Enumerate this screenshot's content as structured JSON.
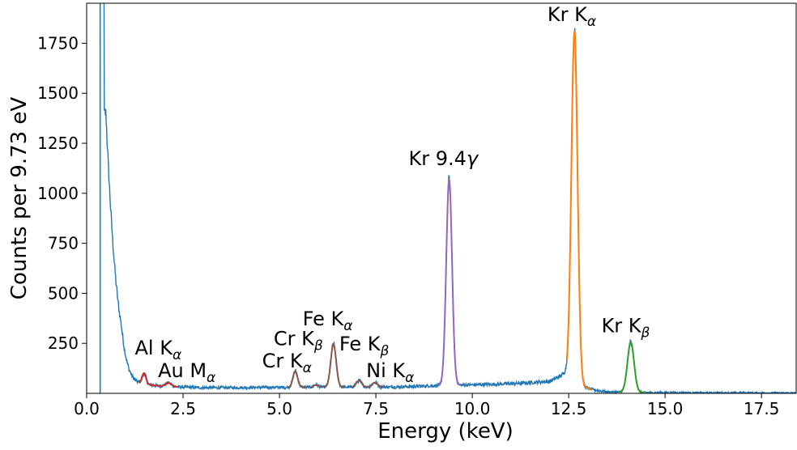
{
  "chart_data": {
    "type": "line",
    "title": "",
    "xlabel": "Energy (keV)",
    "ylabel": "Counts per 9.73 eV",
    "xlim": [
      0,
      18.4
    ],
    "ylim": [
      0,
      1950
    ],
    "xticks": [
      0,
      2.5,
      5,
      7.5,
      10,
      12.5,
      15,
      17.5
    ],
    "xtick_labels": [
      "0.0",
      "2.5",
      "5.0",
      "7.5",
      "10.0",
      "12.5",
      "15.0",
      "17.5"
    ],
    "yticks": [
      250,
      500,
      750,
      1000,
      1250,
      1500,
      1750
    ],
    "ytick_labels": [
      "250",
      "500",
      "750",
      "1000",
      "1250",
      "1500",
      "1750"
    ],
    "grid": false,
    "legend": "none",
    "vertical_line": {
      "x": 0.35,
      "color": "#1f77b4"
    },
    "background": {
      "color": "#1f77b4",
      "low_energy_spike": {
        "x": 0.4,
        "height": 2100
      },
      "continuum": [
        {
          "x": 0.5,
          "y": 1400
        },
        {
          "x": 0.6,
          "y": 1000
        },
        {
          "x": 0.7,
          "y": 700
        },
        {
          "x": 0.8,
          "y": 480
        },
        {
          "x": 0.9,
          "y": 340
        },
        {
          "x": 1.0,
          "y": 200
        },
        {
          "x": 1.1,
          "y": 120
        },
        {
          "x": 1.2,
          "y": 80
        },
        {
          "x": 1.3,
          "y": 60
        },
        {
          "x": 1.5,
          "y": 45
        },
        {
          "x": 2.0,
          "y": 35
        },
        {
          "x": 3.0,
          "y": 28
        },
        {
          "x": 5.0,
          "y": 30
        },
        {
          "x": 8.0,
          "y": 32
        },
        {
          "x": 9.0,
          "y": 38
        },
        {
          "x": 11.0,
          "y": 48
        },
        {
          "x": 12.0,
          "y": 60
        },
        {
          "x": 12.4,
          "y": 100
        },
        {
          "x": 13.5,
          "y": 8
        },
        {
          "x": 15.0,
          "y": 3
        },
        {
          "x": 18.4,
          "y": 2
        }
      ]
    },
    "series": [
      {
        "line": "Al",
        "color": "#d62728",
        "center": 1.49,
        "amplitude": 55,
        "sigma": 0.05,
        "range": [
          1.35,
          1.75
        ]
      },
      {
        "line": "Au",
        "color": "#d62728",
        "center": 2.12,
        "amplitude": 18,
        "sigma": 0.08,
        "range": [
          1.75,
          2.35
        ]
      },
      {
        "line": "Cr Ka",
        "color": "#8c564b",
        "center": 5.41,
        "amplitude": 80,
        "sigma": 0.06,
        "range": [
          5.2,
          5.7
        ]
      },
      {
        "line": "Cr Kb",
        "color": "#8c564b",
        "center": 5.95,
        "amplitude": 12,
        "sigma": 0.06,
        "range": [
          5.8,
          6.1
        ]
      },
      {
        "line": "Fe Ka",
        "color": "#8c564b",
        "center": 6.4,
        "amplitude": 215,
        "sigma": 0.07,
        "range": [
          6.15,
          6.7
        ]
      },
      {
        "line": "Fe Kb",
        "color": "#8c564b",
        "center": 7.06,
        "amplitude": 32,
        "sigma": 0.07,
        "range": [
          6.85,
          7.25
        ]
      },
      {
        "line": "Ni Ka",
        "color": "#8c564b",
        "center": 7.47,
        "amplitude": 22,
        "sigma": 0.07,
        "range": [
          7.25,
          7.7
        ]
      },
      {
        "line": "Kr 9.4",
        "color": "#9467bd",
        "center": 9.4,
        "amplitude": 1030,
        "sigma": 0.075,
        "range": [
          9.1,
          9.7
        ]
      },
      {
        "line": "Kr Ka",
        "color": "#ff7f0e",
        "center": 12.65,
        "amplitude": 1750,
        "sigma": 0.08,
        "range": [
          12.45,
          13.1
        ]
      },
      {
        "line": "Kr Kb",
        "color": "#2ca02c",
        "center": 14.11,
        "amplitude": 250,
        "sigma": 0.085,
        "range": [
          13.8,
          14.45
        ]
      }
    ],
    "annotations": [
      {
        "id": "al-ka",
        "main": "Al K",
        "sub": "α",
        "x": 1.25,
        "y": 195
      },
      {
        "id": "au-ma",
        "main": "Au M",
        "sub": "α",
        "x": 1.85,
        "y": 80
      },
      {
        "id": "cr-ka",
        "main": "Cr K",
        "sub": "α",
        "x": 4.55,
        "y": 130
      },
      {
        "id": "cr-kb",
        "main": "Cr K",
        "sub": "β",
        "x": 4.85,
        "y": 240
      },
      {
        "id": "fe-ka",
        "main": "Fe K",
        "sub": "α",
        "x": 5.6,
        "y": 340
      },
      {
        "id": "fe-kb",
        "main": "Fe K",
        "sub": "β",
        "x": 6.55,
        "y": 215
      },
      {
        "id": "ni-ka",
        "main": "Ni K",
        "sub": "α",
        "x": 7.25,
        "y": 80
      },
      {
        "id": "kr-94",
        "main": "Kr 9.4",
        "sub": "γ",
        "x": 8.35,
        "y": 1140,
        "sub_style": "inline-italic"
      },
      {
        "id": "kr-ka",
        "main": "Kr K",
        "sub": "α",
        "x": 11.95,
        "y": 1860
      },
      {
        "id": "kr-kb",
        "main": "Kr K",
        "sub": "β",
        "x": 13.35,
        "y": 305
      }
    ]
  }
}
